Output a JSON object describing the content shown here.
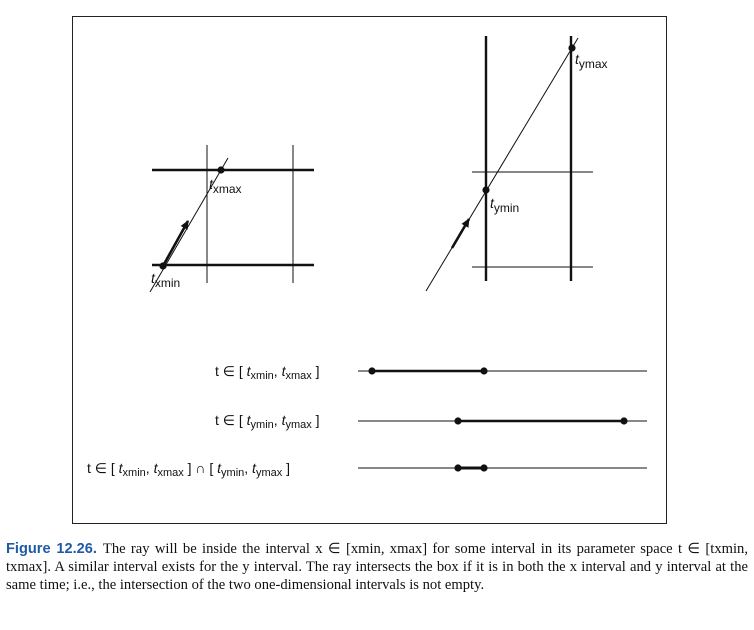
{
  "diagram": {
    "left_labels": {
      "t_xmin": "t",
      "t_xmin_sub": "xmin",
      "t_xmax": "t",
      "t_xmax_sub": "xmax"
    },
    "right_labels": {
      "t_ymin": "t",
      "t_ymin_sub": "ymin",
      "t_ymax": "t",
      "t_ymax_sub": "ymax"
    },
    "intervals": {
      "row1": {
        "prefix": "t ∈ [ ",
        "a": "t",
        "a_sub": "xmin",
        "comma": ", ",
        "b": "t",
        "b_sub": "xmax",
        "suffix": " ]"
      },
      "row2": {
        "prefix": "t ∈ [ ",
        "a": "t",
        "a_sub": "ymin",
        "comma": ", ",
        "b": "t",
        "b_sub": "ymax",
        "suffix": " ]"
      },
      "row3": {
        "prefix": "t ∈ [ ",
        "a": "t",
        "a_sub": "xmin",
        "comma": ", ",
        "b": "t",
        "b_sub": "xmax",
        "mid": " ] ∩ [ ",
        "c": "t",
        "c_sub": "ymin",
        "comma2": ", ",
        "d": "t",
        "d_sub": "ymax",
        "suffix": " ]"
      }
    }
  },
  "caption": {
    "lead": "Figure 12.26.",
    "text": "The ray will be inside the interval x ∈ [xmin, xmax] for some interval in its parameter space t ∈ [txmin, txmax]. A similar interval exists for the y interval. The ray intersects the box if it is in both the x interval and y interval at the same time; i.e., the intersection of the two one-dimensional intervals is not empty."
  }
}
